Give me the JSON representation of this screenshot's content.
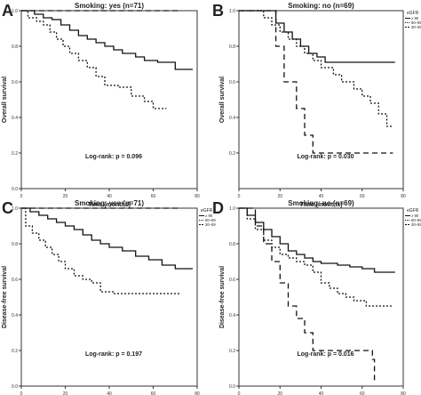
{
  "chart_data": [
    {
      "panel": "A",
      "type": "line",
      "title": "Smoking: yes (n=71)",
      "xlabel": "Time (months)",
      "ylabel": "Overall survival",
      "xlim": [
        0,
        80
      ],
      "ylim": [
        0,
        1.0
      ],
      "xticks": [
        "0",
        "20",
        "40",
        "60",
        "80"
      ],
      "yticks": [
        "0.0",
        "0.2",
        "0.4",
        "0.6",
        "0.8",
        "1.0"
      ],
      "legend": {
        "title": "",
        "entries": []
      },
      "annotation": "Log-rank: p = 0.096",
      "series": [
        {
          "style": "dashed",
          "x": [
            0,
            72
          ],
          "y": [
            1.0,
            1.0
          ]
        },
        {
          "style": "solid",
          "x": [
            0,
            6,
            10,
            14,
            18,
            22,
            26,
            30,
            34,
            38,
            42,
            46,
            52,
            56,
            62,
            70,
            78
          ],
          "y": [
            1.0,
            0.98,
            0.96,
            0.95,
            0.92,
            0.89,
            0.86,
            0.84,
            0.82,
            0.8,
            0.78,
            0.76,
            0.74,
            0.72,
            0.71,
            0.67,
            0.67
          ]
        },
        {
          "style": "dotted",
          "x": [
            0,
            3,
            7,
            10,
            13,
            16,
            19,
            22,
            26,
            30,
            34,
            38,
            44,
            50,
            56,
            60,
            66
          ],
          "y": [
            1.0,
            0.96,
            0.94,
            0.92,
            0.88,
            0.84,
            0.8,
            0.76,
            0.72,
            0.68,
            0.63,
            0.58,
            0.57,
            0.52,
            0.49,
            0.45,
            0.45
          ]
        }
      ]
    },
    {
      "panel": "B",
      "type": "line",
      "title": "Smoking: no (n=69)",
      "xlabel": "Time (months)",
      "ylabel": "Overall survival",
      "xlim": [
        0,
        80
      ],
      "ylim": [
        0,
        1.0
      ],
      "xticks": [
        "0",
        "20",
        "40",
        "60",
        "80"
      ],
      "yticks": [
        "0.2",
        "0.4",
        "0.6",
        "0.8",
        "1.0"
      ],
      "legend": {
        "title": "eGFR",
        "entries": [
          "≥ 90",
          "60–89",
          "30–59"
        ]
      },
      "annotation": "Log-rank: p = 0.030",
      "series": [
        {
          "style": "solid",
          "x": [
            0,
            14,
            18,
            22,
            26,
            30,
            34,
            38,
            42,
            76
          ],
          "y": [
            1.0,
            1.0,
            0.93,
            0.88,
            0.84,
            0.8,
            0.76,
            0.74,
            0.71,
            0.71
          ]
        },
        {
          "style": "dotted",
          "x": [
            0,
            12,
            16,
            20,
            24,
            28,
            32,
            36,
            40,
            46,
            50,
            56,
            60,
            64,
            68,
            72,
            75
          ],
          "y": [
            1.0,
            0.96,
            0.92,
            0.88,
            0.84,
            0.8,
            0.76,
            0.72,
            0.68,
            0.64,
            0.6,
            0.56,
            0.52,
            0.48,
            0.42,
            0.35,
            0.35
          ]
        },
        {
          "style": "dashed",
          "x": [
            0,
            14,
            18,
            22,
            28,
            32,
            36,
            40,
            75
          ],
          "y": [
            1.0,
            1.0,
            0.8,
            0.6,
            0.45,
            0.3,
            0.2,
            0.2,
            0.2
          ]
        }
      ]
    },
    {
      "panel": "C",
      "type": "line",
      "title": "Smoking: yes (n=71)",
      "xlabel": "Time (months)",
      "ylabel": "Disease-free survival",
      "xlim": [
        0,
        80
      ],
      "ylim": [
        0,
        1.0
      ],
      "xticks": [
        "0",
        "20",
        "40",
        "60",
        "80"
      ],
      "yticks": [
        "0.0",
        "0.2",
        "0.4",
        "0.6",
        "0.8",
        "1.0"
      ],
      "legend": {
        "title": "eGFR",
        "entries": [
          "≥ 90",
          "60–89",
          "30–59"
        ]
      },
      "annotation": "Log-rank: p = 0.197",
      "series": [
        {
          "style": "dashed",
          "x": [
            0,
            72
          ],
          "y": [
            1.0,
            1.0
          ]
        },
        {
          "style": "solid",
          "x": [
            0,
            4,
            8,
            12,
            16,
            20,
            24,
            28,
            32,
            36,
            40,
            46,
            52,
            58,
            64,
            70,
            78
          ],
          "y": [
            1.0,
            0.98,
            0.96,
            0.94,
            0.92,
            0.9,
            0.88,
            0.85,
            0.82,
            0.8,
            0.78,
            0.76,
            0.73,
            0.71,
            0.68,
            0.66,
            0.66
          ]
        },
        {
          "style": "dotted",
          "x": [
            0,
            2,
            5,
            8,
            11,
            14,
            17,
            20,
            24,
            28,
            32,
            36,
            42,
            48,
            54,
            60,
            72
          ],
          "y": [
            1.0,
            0.9,
            0.86,
            0.82,
            0.78,
            0.74,
            0.7,
            0.66,
            0.62,
            0.6,
            0.58,
            0.53,
            0.52,
            0.52,
            0.52,
            0.52,
            0.52
          ]
        }
      ]
    },
    {
      "panel": "D",
      "type": "line",
      "title": "Smoking: no (n=69)",
      "xlabel": "Time (months)",
      "ylabel": "Disease-free survival",
      "xlim": [
        0,
        80
      ],
      "ylim": [
        0,
        1.0
      ],
      "xticks": [
        "0",
        "20",
        "40",
        "60",
        "80"
      ],
      "yticks": [
        "0.0",
        "0.2",
        "0.4",
        "0.6",
        "0.8",
        "1.0"
      ],
      "legend": {
        "title": "eGFR",
        "entries": [
          "≥ 90",
          "60–89",
          "30–59"
        ]
      },
      "annotation": "Log-rank: p = 0.016",
      "series": [
        {
          "style": "solid",
          "x": [
            0,
            4,
            8,
            12,
            16,
            20,
            24,
            28,
            32,
            36,
            40,
            48,
            54,
            60,
            66,
            76
          ],
          "y": [
            1.0,
            0.96,
            0.92,
            0.88,
            0.84,
            0.8,
            0.76,
            0.74,
            0.72,
            0.7,
            0.69,
            0.68,
            0.67,
            0.66,
            0.64,
            0.64
          ]
        },
        {
          "style": "dotted",
          "x": [
            0,
            4,
            8,
            12,
            16,
            20,
            24,
            28,
            32,
            36,
            40,
            44,
            48,
            52,
            56,
            62,
            75
          ],
          "y": [
            1.0,
            0.94,
            0.88,
            0.82,
            0.78,
            0.74,
            0.72,
            0.7,
            0.68,
            0.64,
            0.58,
            0.55,
            0.52,
            0.5,
            0.48,
            0.45,
            0.45
          ]
        },
        {
          "style": "dashed",
          "x": [
            0,
            4,
            8,
            12,
            16,
            20,
            24,
            28,
            32,
            36,
            40,
            48,
            56,
            62,
            65,
            66
          ],
          "y": [
            1.0,
            1.0,
            0.9,
            0.8,
            0.7,
            0.58,
            0.45,
            0.38,
            0.3,
            0.2,
            0.2,
            0.2,
            0.2,
            0.2,
            0.15,
            0.02
          ]
        }
      ]
    }
  ],
  "panel_labels": [
    "A",
    "B",
    "C",
    "D"
  ]
}
